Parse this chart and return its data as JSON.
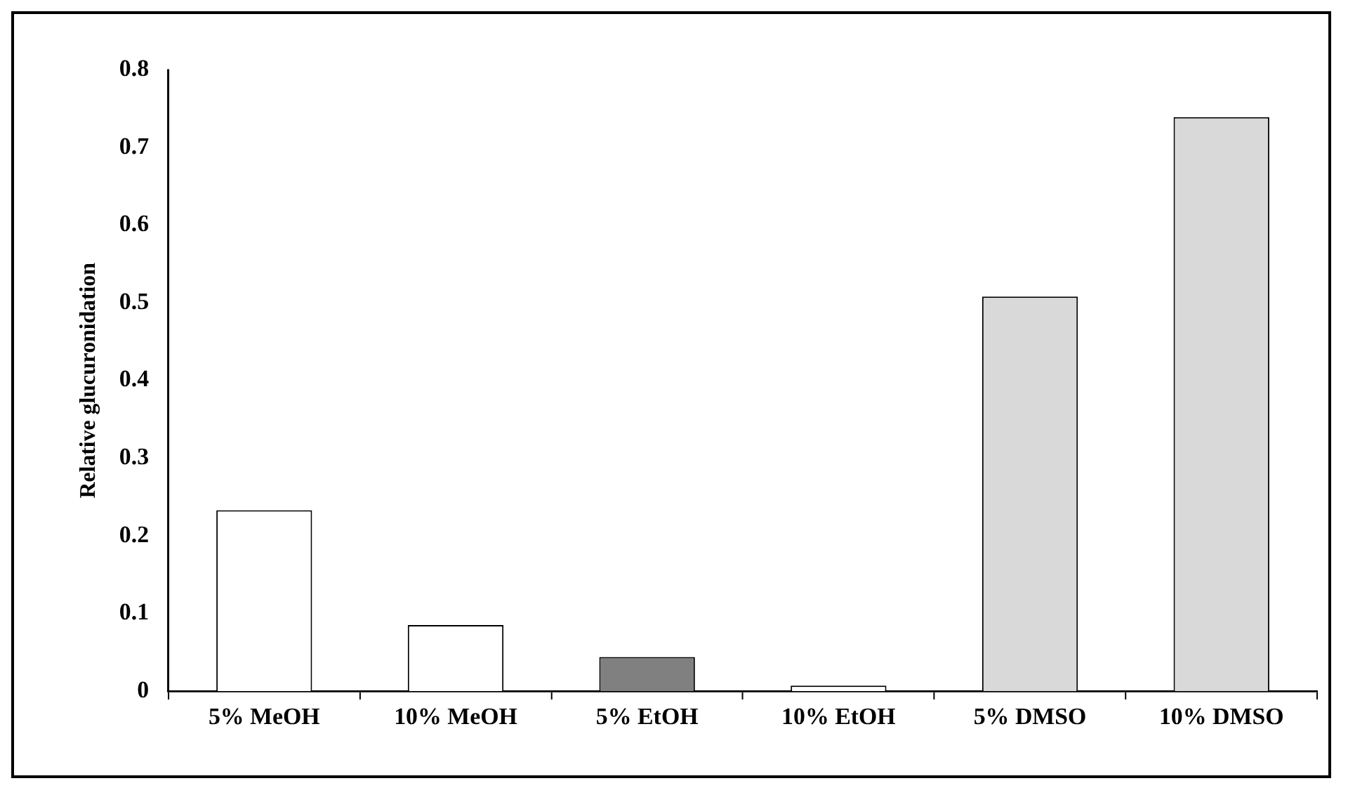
{
  "chart_data": {
    "type": "bar",
    "ylabel": "Relative glucuronidation",
    "categories": [
      "5% MeOH",
      "10% MeOH",
      "5% EtOH",
      "10% EtOH",
      "5% DMSO",
      "10% DMSO"
    ],
    "values": [
      0.233,
      0.085,
      0.044,
      0.007,
      0.508,
      0.739
    ],
    "colors": [
      "#ffffff",
      "#ffffff",
      "#808080",
      "#ffffff",
      "#d9d9d9",
      "#d9d9d9"
    ],
    "ylim": [
      0,
      0.8
    ],
    "yticks": [
      0,
      0.1,
      0.2,
      0.3,
      0.4,
      0.5,
      0.6,
      0.7,
      0.8
    ],
    "grid": false,
    "legend": false
  }
}
